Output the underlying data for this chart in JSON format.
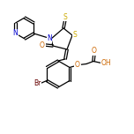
{
  "bg_color": "#ffffff",
  "bond_color": "#000000",
  "atom_colors": {
    "N": "#0000cc",
    "O": "#cc6600",
    "S": "#ccaa00",
    "Br": "#660000",
    "C": "#000000",
    "H": "#000000"
  },
  "figsize": [
    1.52,
    1.52
  ],
  "dpi": 100
}
